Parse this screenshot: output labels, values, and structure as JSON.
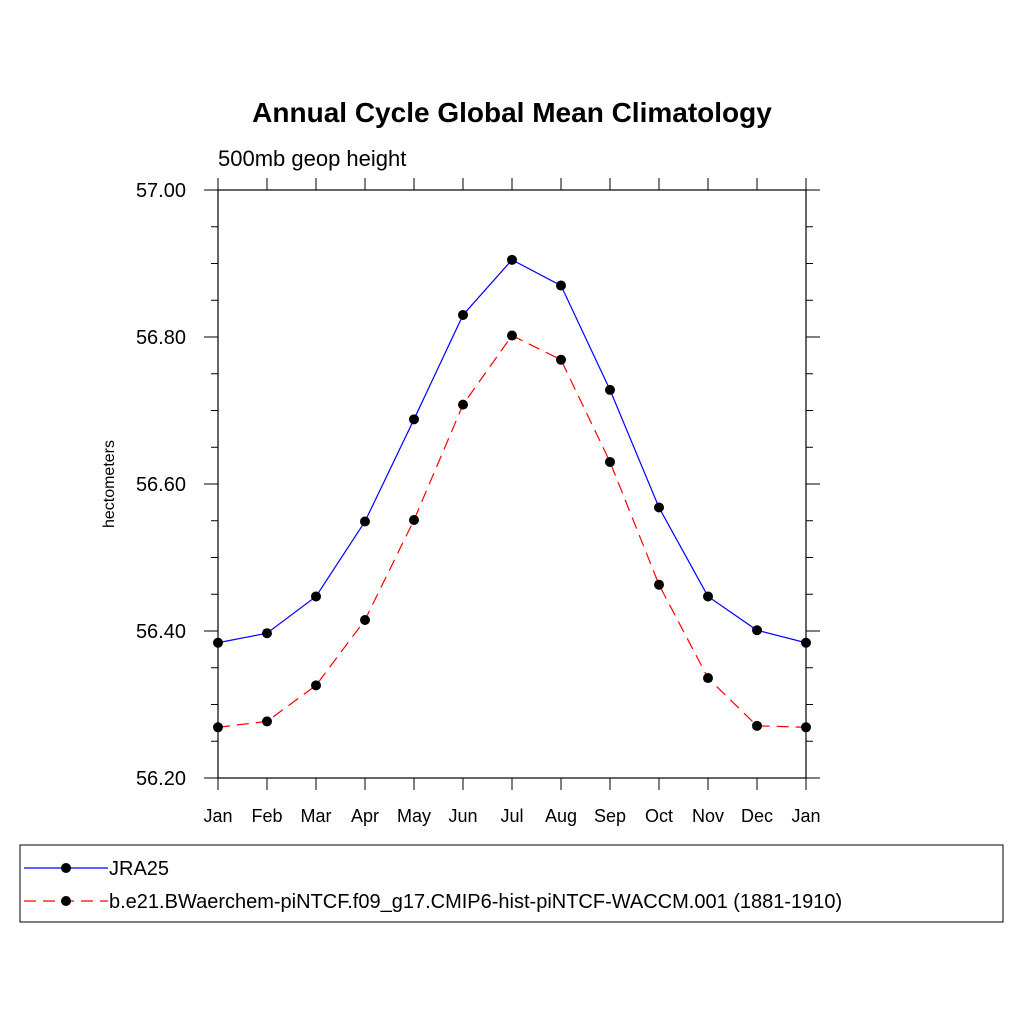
{
  "chart_data": {
    "type": "line",
    "title": "Annual Cycle Global Mean Climatology",
    "subtitle": "500mb geop height",
    "ylabel": "hectometers",
    "xlabel": "",
    "categories": [
      "Jan",
      "Feb",
      "Mar",
      "Apr",
      "May",
      "Jun",
      "Jul",
      "Aug",
      "Sep",
      "Oct",
      "Nov",
      "Dec",
      "Jan"
    ],
    "ylim": [
      56.2,
      57.0
    ],
    "yticks": [
      "56.20",
      "56.40",
      "56.60",
      "56.80",
      "57.00"
    ],
    "series": [
      {
        "name": "JRA25",
        "color": "#0000ff",
        "dash": "solid",
        "values": [
          56.384,
          56.397,
          56.447,
          56.549,
          56.688,
          56.83,
          56.905,
          56.87,
          56.728,
          56.568,
          56.447,
          56.401,
          56.384
        ]
      },
      {
        "name": "b.e21.BWaerchem-piNTCF.f09_g17.CMIP6-hist-piNTCF-WACCM.001 (1881-1910)",
        "color": "#ff0000",
        "dash": "dashed",
        "values": [
          56.269,
          56.277,
          56.326,
          56.415,
          56.551,
          56.708,
          56.802,
          56.769,
          56.63,
          56.463,
          56.336,
          56.271,
          56.269
        ]
      }
    ],
    "marker": "filled-circle",
    "legend_placement": "bottom"
  }
}
